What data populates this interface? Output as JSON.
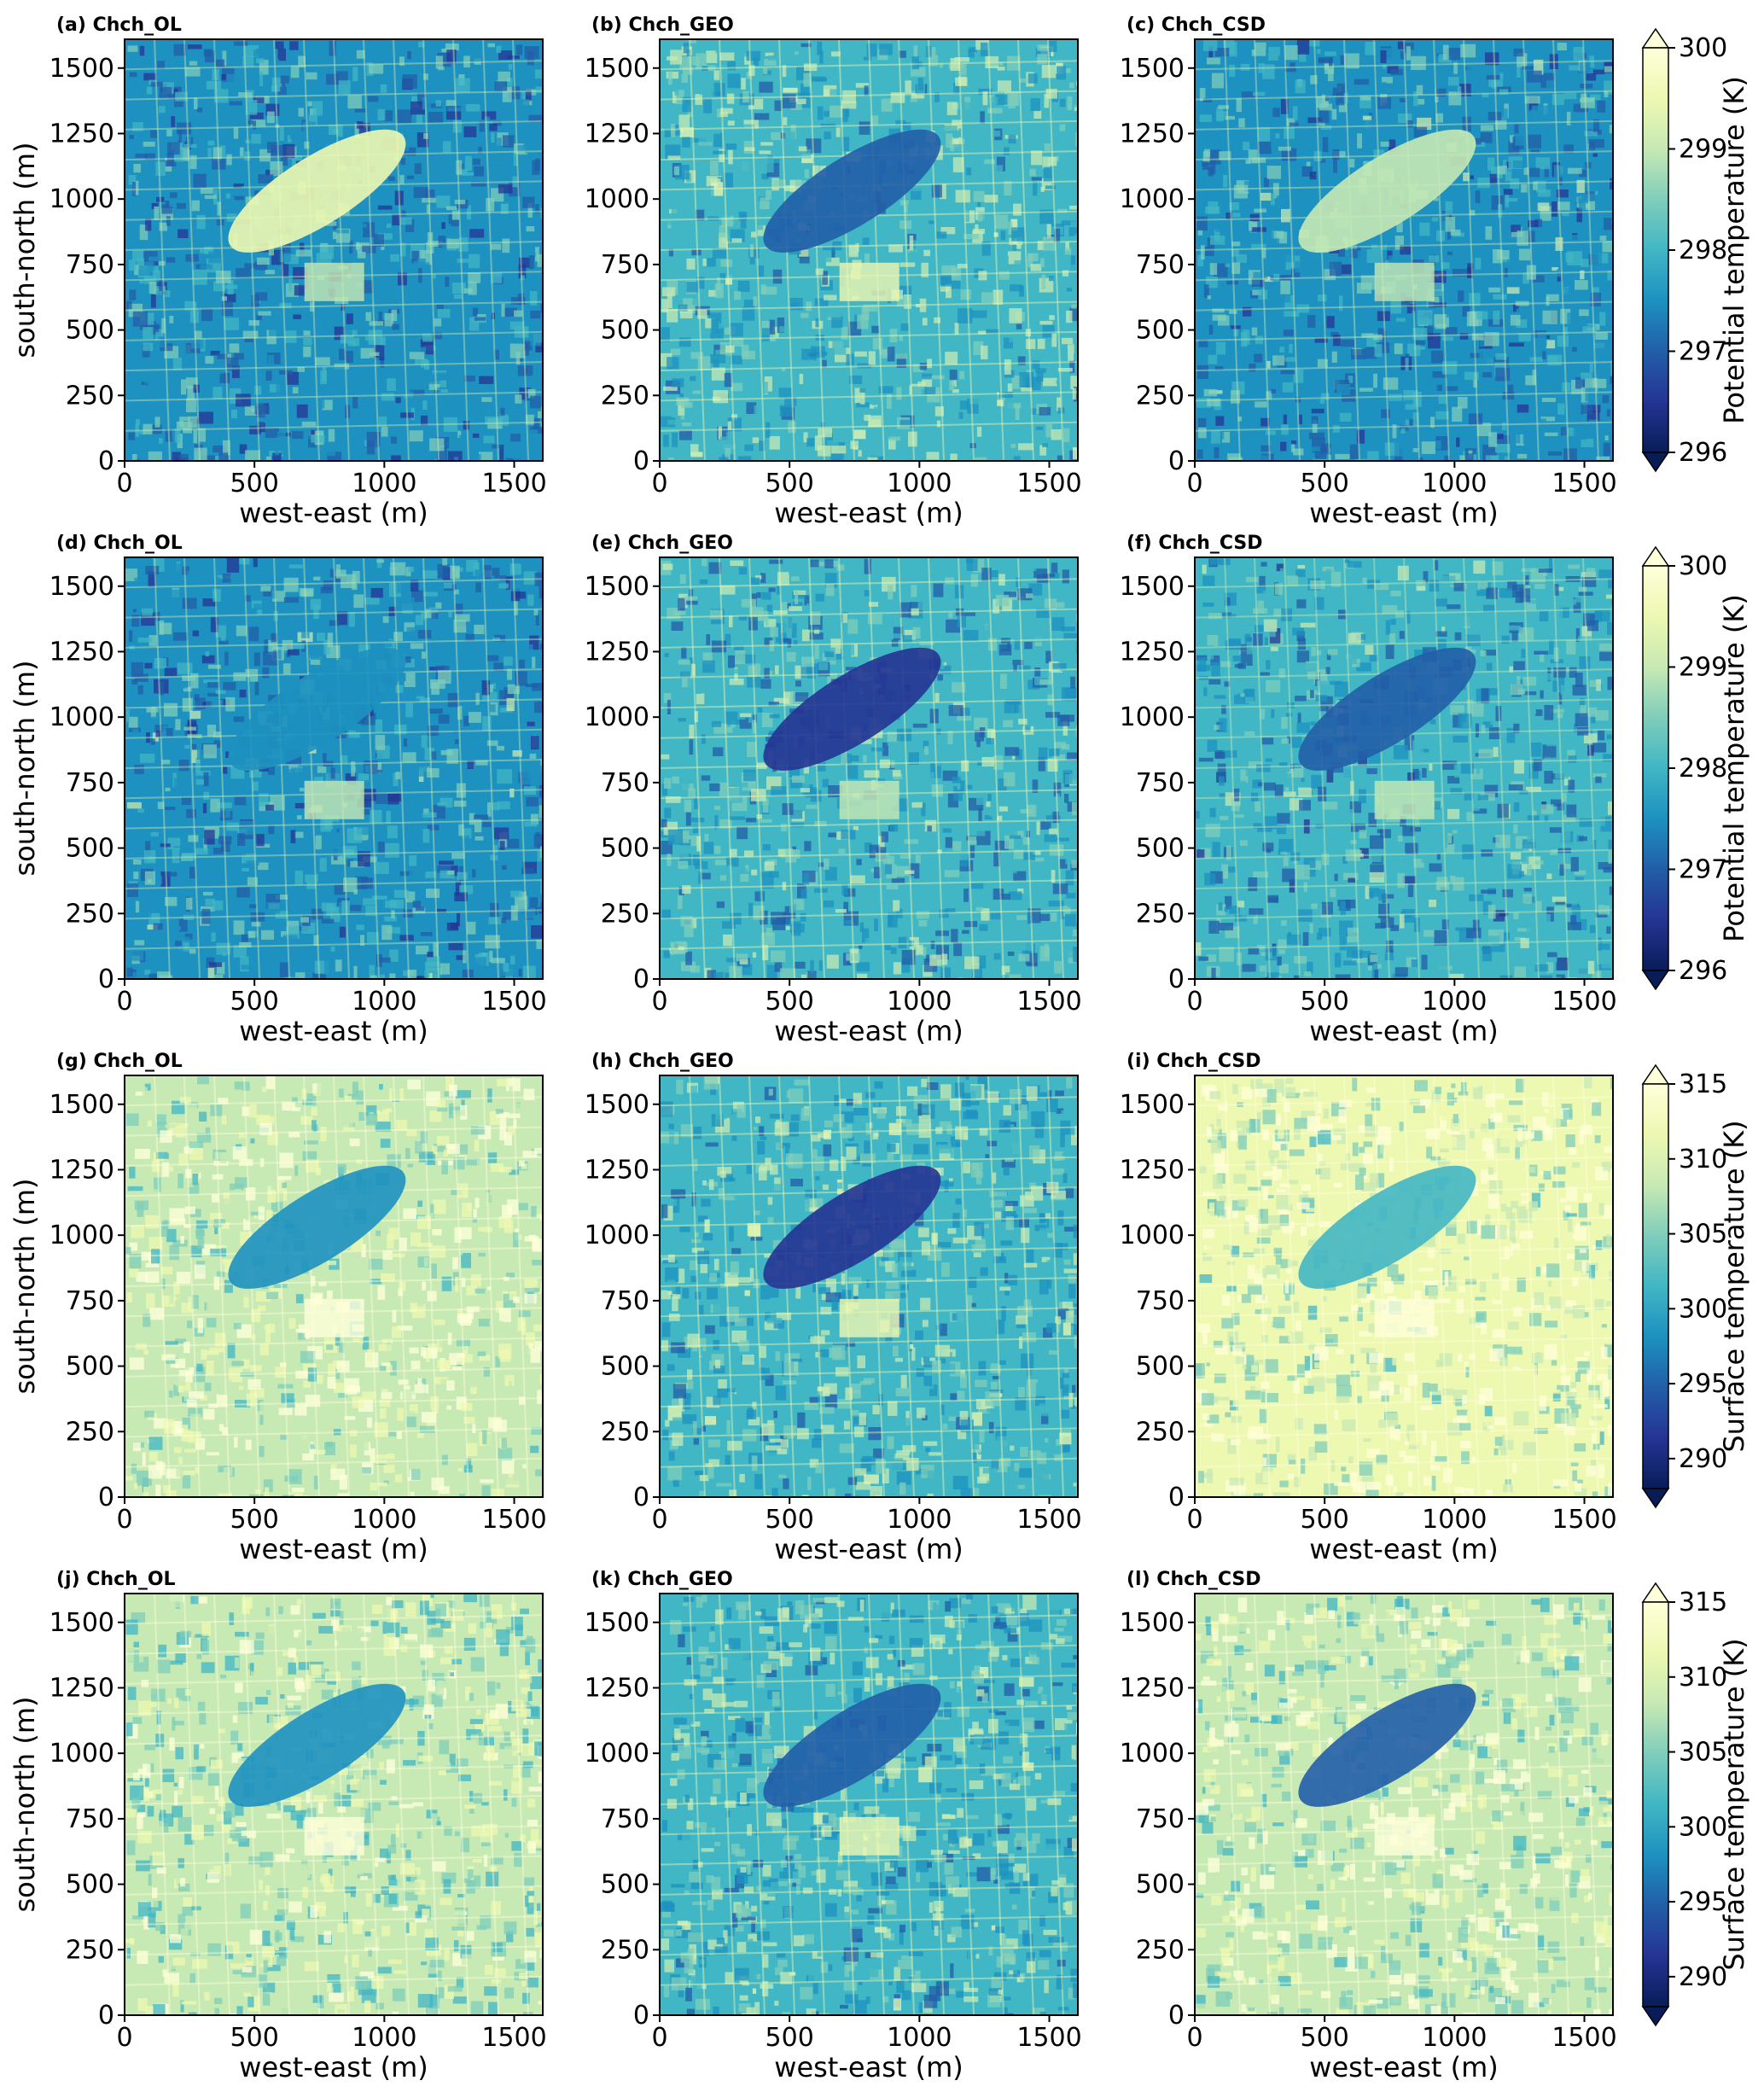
{
  "colormap": {
    "name": "YlGnBu",
    "stops": [
      "#081d58",
      "#253494",
      "#225ea8",
      "#1d91c0",
      "#41b6c4",
      "#7fcdbb",
      "#c7e9b4",
      "#edf8b1",
      "#ffffd9"
    ]
  },
  "axes": {
    "xlabel": "west-east (m)",
    "ylabel": "south-north (m)",
    "xticks": [
      "0",
      "500",
      "1000",
      "1500"
    ],
    "yticks": [
      "0",
      "250",
      "500",
      "750",
      "1000",
      "1250",
      "1500"
    ],
    "xlim": [
      0,
      1610
    ],
    "ylim": [
      0,
      1610
    ]
  },
  "chart_data": {
    "type": "heatmap",
    "layout": "4 rows x 3 columns of maps",
    "panels": [
      {
        "title": "(a) Chch_OL",
        "row": 0,
        "col": 0,
        "base": 0.4,
        "lake": 0.93
      },
      {
        "title": "(b) Chch_GEO",
        "row": 0,
        "col": 1,
        "base": 0.55,
        "lake": 0.25
      },
      {
        "title": "(c) Chch_CSD",
        "row": 0,
        "col": 2,
        "base": 0.42,
        "lake": 0.7
      },
      {
        "title": "(d) Chch_OL",
        "row": 1,
        "col": 0,
        "base": 0.42,
        "lake": 0.38
      },
      {
        "title": "(e) Chch_GEO",
        "row": 1,
        "col": 1,
        "base": 0.48,
        "lake": 0.08
      },
      {
        "title": "(f) Chch_CSD",
        "row": 1,
        "col": 2,
        "base": 0.45,
        "lake": 0.22
      },
      {
        "title": "(g) Chch_OL",
        "row": 2,
        "col": 0,
        "base": 0.8,
        "lake": 0.42
      },
      {
        "title": "(h) Chch_GEO",
        "row": 2,
        "col": 1,
        "base": 0.55,
        "lake": 0.18
      },
      {
        "title": "(i) Chch_CSD",
        "row": 2,
        "col": 2,
        "base": 0.82,
        "lake": 0.5
      },
      {
        "title": "(j) Chch_OL",
        "row": 3,
        "col": 0,
        "base": 0.72,
        "lake": 0.35
      },
      {
        "title": "(k) Chch_GEO",
        "row": 3,
        "col": 1,
        "base": 0.55,
        "lake": 0.25
      },
      {
        "title": "(l) Chch_CSD",
        "row": 3,
        "col": 2,
        "base": 0.78,
        "lake": 0.28
      }
    ],
    "colorbars": [
      {
        "row": 0,
        "label": "Potential temperature (K)",
        "ticks": [
          "296",
          "297",
          "298",
          "299",
          "300"
        ],
        "range": [
          296,
          300
        ],
        "extend": "both"
      },
      {
        "row": 1,
        "label": "Potential temperature (K)",
        "ticks": [
          "296",
          "297",
          "298",
          "299",
          "300"
        ],
        "range": [
          296,
          300
        ],
        "extend": "both"
      },
      {
        "row": 2,
        "label": "Surface temperature (K)",
        "ticks": [
          "290",
          "295",
          "300",
          "305",
          "310",
          "315"
        ],
        "range": [
          288,
          315
        ],
        "extend": "both"
      },
      {
        "row": 3,
        "label": "Surface temperature (K)",
        "ticks": [
          "290",
          "295",
          "300",
          "305",
          "310",
          "315"
        ],
        "range": [
          288,
          315
        ],
        "extend": "both"
      }
    ]
  }
}
